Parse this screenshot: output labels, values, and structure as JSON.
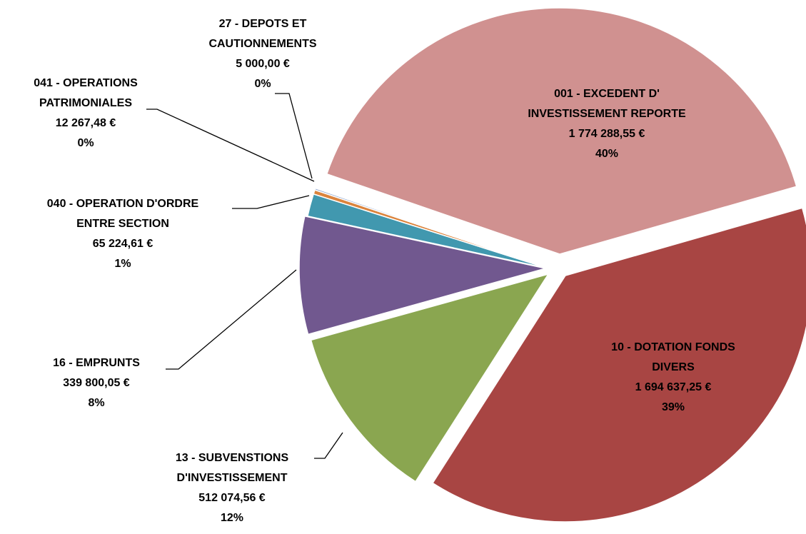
{
  "chart_data": {
    "type": "pie",
    "categories": [
      "001 - EXCEDENT D' INVESTISSEMENT REPORTE",
      "10 - DOTATION FONDS DIVERS",
      "13 - SUBVENSTIONS D'INVESTISSEMENT",
      "16 - EMPRUNTS",
      "040 - OPERATION D'ORDRE ENTRE SECTION",
      "041 - OPERATIONS PATRIMONIALES",
      "27 - DEPOTS ET CAUTIONNEMENTS"
    ],
    "values": [
      1774288.55,
      1694637.25,
      512074.56,
      339800.05,
      65224.61,
      12267.48,
      5000
    ],
    "value_labels": [
      "1 774 288,55 €",
      "1 694 637,25 €",
      "512 074,56 €",
      "339 800,05 €",
      "65 224,61 €",
      "12 267,48 €",
      "5 000,00 €"
    ],
    "percent_labels": [
      "40%",
      "39%",
      "12%",
      "8%",
      "1%",
      "0%",
      "0%"
    ],
    "colors": [
      "#d09190",
      "#a84543",
      "#8aa650",
      "#71588f",
      "#4198af",
      "#db843d",
      "#93a9cf"
    ]
  }
}
